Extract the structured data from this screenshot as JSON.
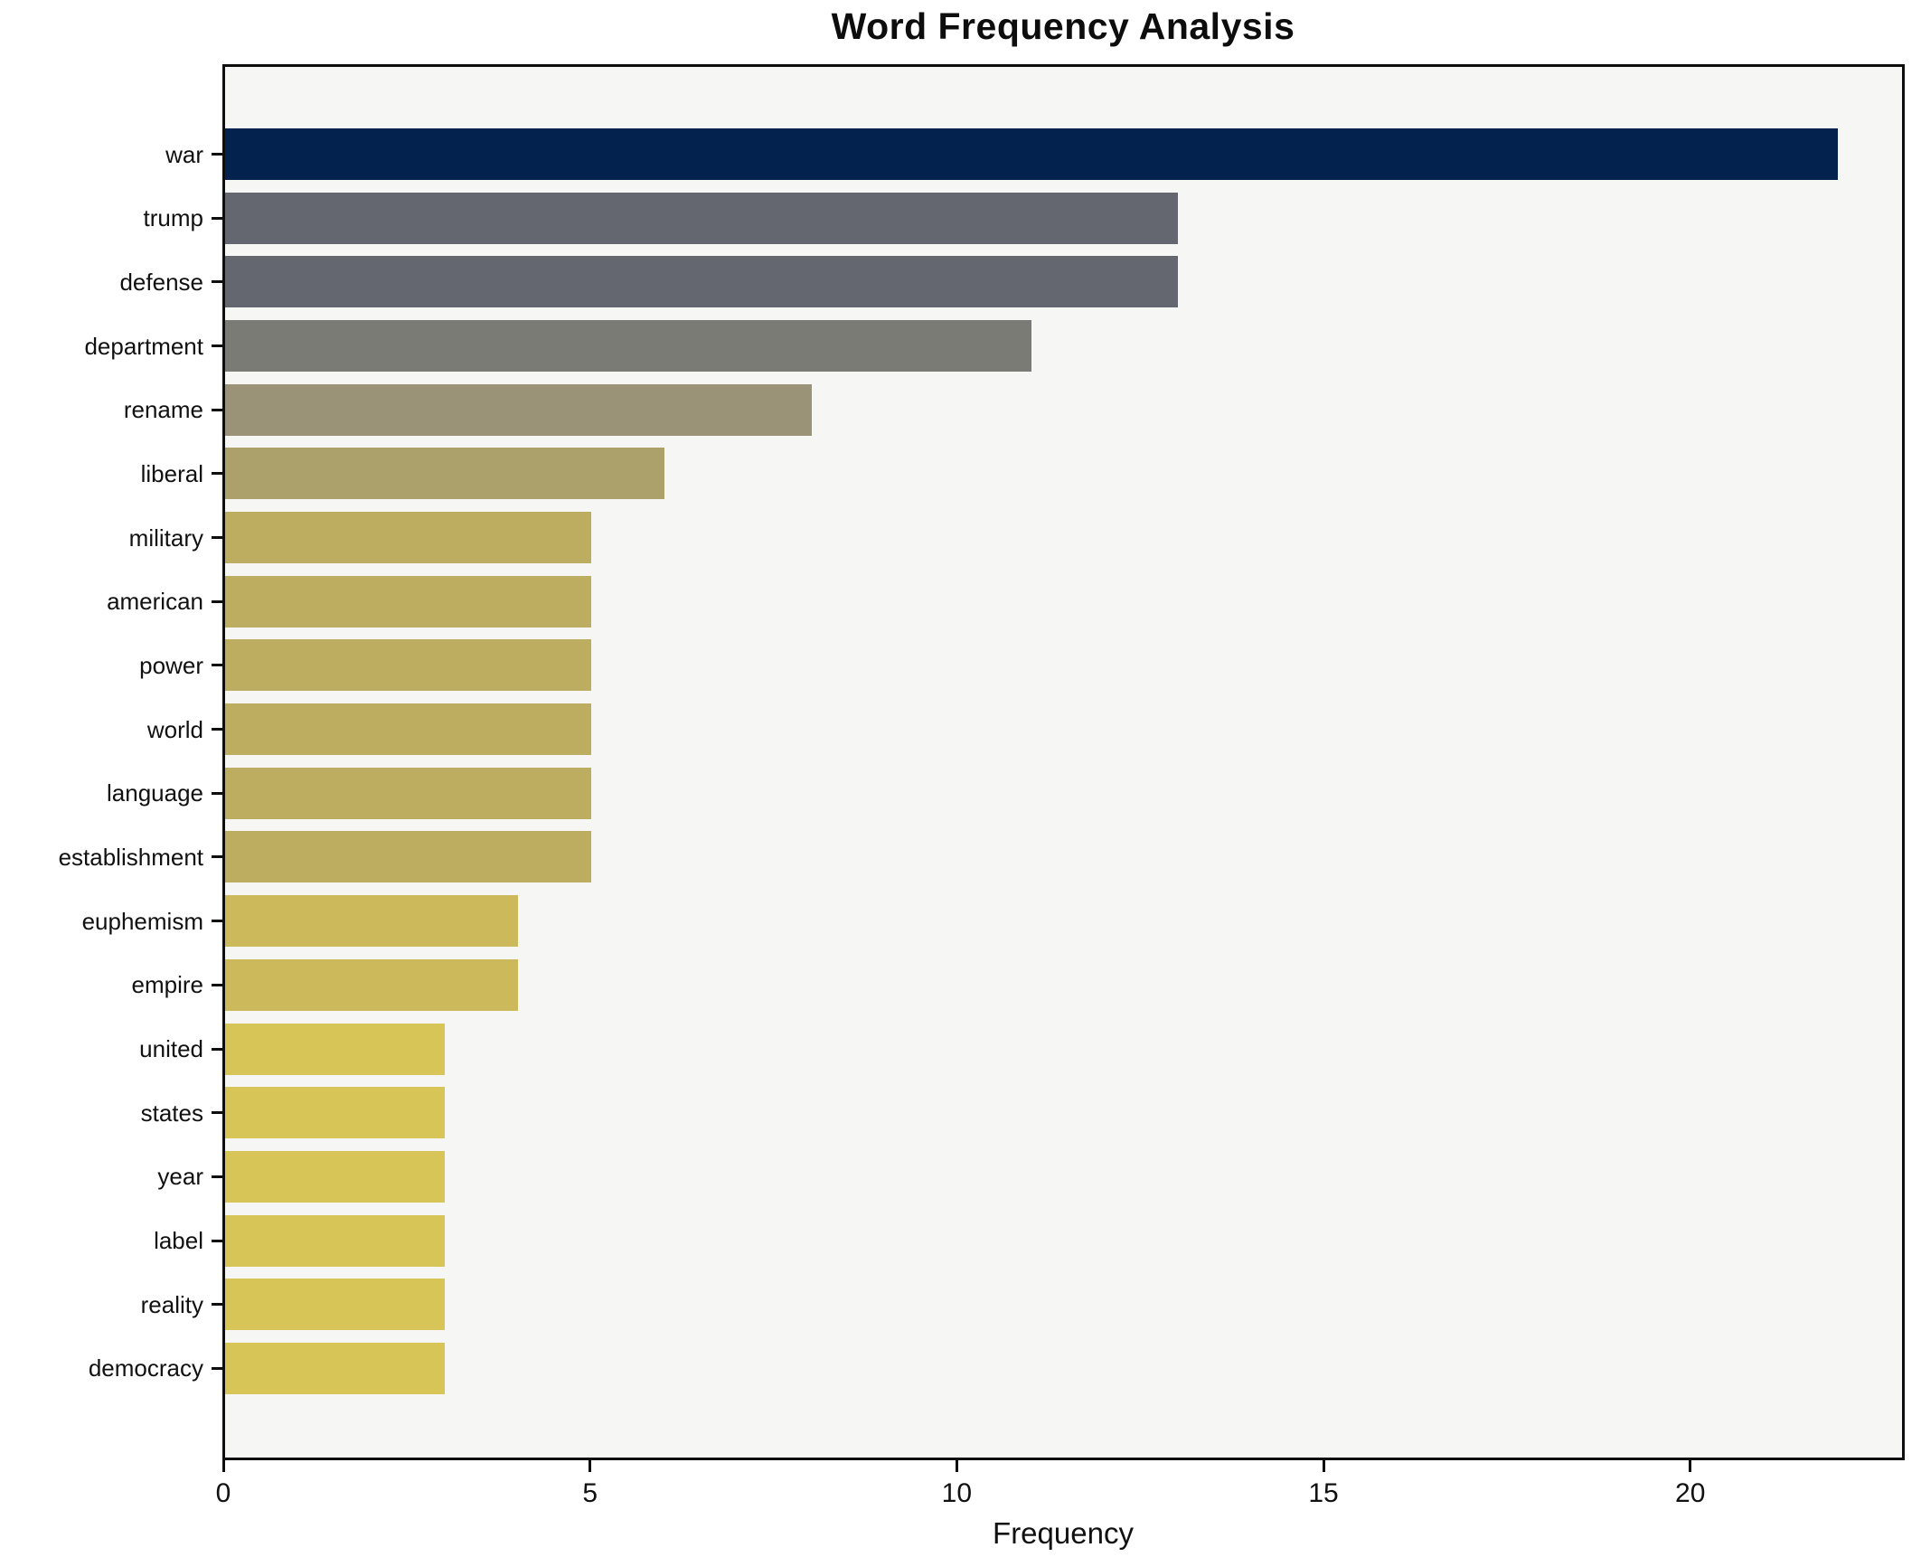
{
  "chart_data": {
    "type": "bar",
    "orientation": "horizontal",
    "title": "Word Frequency Analysis",
    "xlabel": "Frequency",
    "ylabel": "",
    "categories": [
      "war",
      "trump",
      "defense",
      "department",
      "rename",
      "liberal",
      "military",
      "american",
      "power",
      "world",
      "language",
      "establishment",
      "euphemism",
      "empire",
      "united",
      "states",
      "year",
      "label",
      "reality",
      "democracy"
    ],
    "values": [
      22,
      13,
      13,
      11,
      8,
      6,
      5,
      5,
      5,
      5,
      5,
      5,
      4,
      4,
      3,
      3,
      3,
      3,
      3,
      3
    ],
    "bar_colors": [
      "#03234e",
      "#656770",
      "#656770",
      "#7b7b76",
      "#9b9377",
      "#ada16b",
      "#bdad61",
      "#bdad61",
      "#bdad61",
      "#bdad61",
      "#bdad61",
      "#bdad61",
      "#cbb95b",
      "#cbb95b",
      "#d8c557",
      "#d8c557",
      "#d8c557",
      "#d8c557",
      "#d8c557",
      "#d8c557"
    ],
    "xlim": [
      0,
      22.9
    ],
    "xticks": [
      0,
      5,
      10,
      15,
      20
    ],
    "grid": false,
    "legend": null,
    "colors": {
      "plot_background": "#f6f6f4",
      "figure_background": "#ffffff",
      "axis": "#0e0e0e",
      "text": "#111111"
    }
  }
}
